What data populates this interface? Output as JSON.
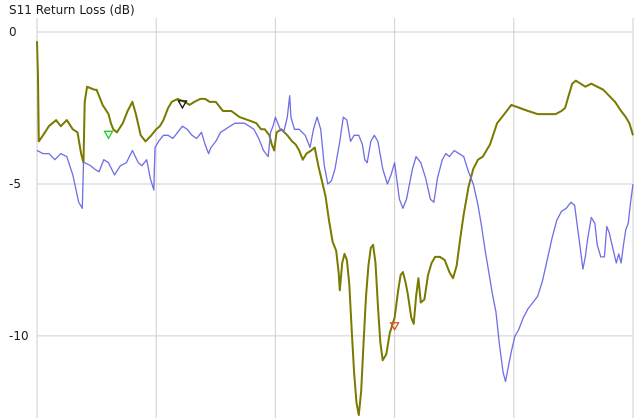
{
  "chart_data": {
    "type": "line",
    "title": "S11 Return Loss (dB)",
    "xlabel": "",
    "ylabel": "",
    "xlim": [
      0,
      500
    ],
    "ylim": [
      -12.7,
      0
    ],
    "y_ticks": [
      0,
      -5,
      -10
    ],
    "y_tick_labels": [
      "0",
      "-5",
      "-10"
    ],
    "x_gridlines": [
      0,
      100,
      200,
      300,
      400,
      500
    ],
    "grid": true,
    "legend": "none",
    "colors": {
      "olive": "#7a7a00",
      "blue": "#6e6ee6",
      "grid": "#cfcfcf",
      "marker_green": "#22cc22",
      "marker_black": "#111111",
      "marker_red": "#e05020"
    },
    "series": [
      {
        "color": "#7a7a00",
        "points": [
          [
            0,
            -0.3
          ],
          [
            0.8,
            -1.5
          ],
          [
            1.5,
            -3.6
          ],
          [
            5,
            -3.4
          ],
          [
            10,
            -3.1
          ],
          [
            16,
            -2.9
          ],
          [
            20,
            -3.1
          ],
          [
            25,
            -2.9
          ],
          [
            30,
            -3.2
          ],
          [
            34,
            -3.3
          ],
          [
            37,
            -4.0
          ],
          [
            39,
            -4.3
          ],
          [
            40,
            -2.3
          ],
          [
            42,
            -1.8
          ],
          [
            48,
            -1.9
          ],
          [
            50,
            -1.9
          ],
          [
            55,
            -2.4
          ],
          [
            60,
            -2.7
          ],
          [
            62,
            -3.0
          ],
          [
            64,
            -3.2
          ],
          [
            67,
            -3.3
          ],
          [
            72,
            -3.0
          ],
          [
            76,
            -2.6
          ],
          [
            80,
            -2.3
          ],
          [
            83,
            -2.7
          ],
          [
            87,
            -3.4
          ],
          [
            91,
            -3.6
          ],
          [
            96,
            -3.4
          ],
          [
            100,
            -3.2
          ],
          [
            103,
            -3.1
          ],
          [
            106,
            -2.9
          ],
          [
            110,
            -2.5
          ],
          [
            113,
            -2.3
          ],
          [
            118,
            -2.2
          ],
          [
            124,
            -2.3
          ],
          [
            128,
            -2.4
          ],
          [
            132,
            -2.3
          ],
          [
            137,
            -2.2
          ],
          [
            141,
            -2.2
          ],
          [
            145,
            -2.3
          ],
          [
            150,
            -2.3
          ],
          [
            156,
            -2.6
          ],
          [
            163,
            -2.6
          ],
          [
            170,
            -2.8
          ],
          [
            177,
            -2.9
          ],
          [
            184,
            -3.0
          ],
          [
            188,
            -3.2
          ],
          [
            191,
            -3.2
          ],
          [
            195,
            -3.4
          ],
          [
            197,
            -3.7
          ],
          [
            199,
            -3.9
          ],
          [
            201,
            -3.3
          ],
          [
            205,
            -3.2
          ],
          [
            210,
            -3.4
          ],
          [
            214,
            -3.6
          ],
          [
            217,
            -3.7
          ],
          [
            220,
            -3.9
          ],
          [
            223,
            -4.2
          ],
          [
            226,
            -4.0
          ],
          [
            230,
            -3.9
          ],
          [
            233,
            -3.8
          ],
          [
            236,
            -4.4
          ],
          [
            239,
            -4.9
          ],
          [
            242,
            -5.4
          ],
          [
            245,
            -6.2
          ],
          [
            248,
            -6.9
          ],
          [
            251,
            -7.2
          ],
          [
            253,
            -7.9
          ],
          [
            254,
            -8.5
          ],
          [
            256,
            -7.6
          ],
          [
            258,
            -7.3
          ],
          [
            260,
            -7.5
          ],
          [
            262,
            -8.3
          ],
          [
            264,
            -9.8
          ],
          [
            266,
            -11.2
          ],
          [
            268,
            -12.2
          ],
          [
            270,
            -12.6
          ],
          [
            272,
            -11.8
          ],
          [
            274,
            -10.2
          ],
          [
            276,
            -8.7
          ],
          [
            278,
            -7.7
          ],
          [
            280,
            -7.1
          ],
          [
            282,
            -7.0
          ],
          [
            284,
            -7.6
          ],
          [
            286,
            -9.0
          ],
          [
            288,
            -10.2
          ],
          [
            290,
            -10.8
          ],
          [
            293,
            -10.6
          ],
          [
            296,
            -9.9
          ],
          [
            300,
            -9.4
          ],
          [
            303,
            -8.5
          ],
          [
            305,
            -8.0
          ],
          [
            307,
            -7.9
          ],
          [
            309,
            -8.2
          ],
          [
            311,
            -8.6
          ],
          [
            314,
            -9.4
          ],
          [
            316,
            -9.6
          ],
          [
            318,
            -8.7
          ],
          [
            320,
            -8.1
          ],
          [
            322,
            -8.9
          ],
          [
            325,
            -8.8
          ],
          [
            328,
            -8.0
          ],
          [
            331,
            -7.6
          ],
          [
            334,
            -7.4
          ],
          [
            338,
            -7.4
          ],
          [
            342,
            -7.5
          ],
          [
            346,
            -7.9
          ],
          [
            349,
            -8.1
          ],
          [
            352,
            -7.7
          ],
          [
            355,
            -6.8
          ],
          [
            358,
            -6.0
          ],
          [
            362,
            -5.1
          ],
          [
            366,
            -4.5
          ],
          [
            370,
            -4.2
          ],
          [
            374,
            -4.1
          ],
          [
            380,
            -3.7
          ],
          [
            386,
            -3.0
          ],
          [
            392,
            -2.7
          ],
          [
            398,
            -2.4
          ],
          [
            405,
            -2.5
          ],
          [
            412,
            -2.6
          ],
          [
            420,
            -2.7
          ],
          [
            428,
            -2.7
          ],
          [
            435,
            -2.7
          ],
          [
            440,
            -2.6
          ],
          [
            443,
            -2.5
          ],
          [
            446,
            -2.1
          ],
          [
            449,
            -1.7
          ],
          [
            452,
            -1.6
          ],
          [
            456,
            -1.7
          ],
          [
            460,
            -1.8
          ],
          [
            465,
            -1.7
          ],
          [
            470,
            -1.8
          ],
          [
            475,
            -1.9
          ],
          [
            480,
            -2.1
          ],
          [
            485,
            -2.3
          ],
          [
            490,
            -2.6
          ],
          [
            494,
            -2.8
          ],
          [
            497,
            -3.0
          ],
          [
            500,
            -3.4
          ]
        ]
      },
      {
        "color": "#6e6ee6",
        "points": [
          [
            0,
            -3.9
          ],
          [
            5,
            -4.0
          ],
          [
            10,
            -4.0
          ],
          [
            15,
            -4.2
          ],
          [
            20,
            -4.0
          ],
          [
            25,
            -4.1
          ],
          [
            30,
            -4.7
          ],
          [
            35,
            -5.6
          ],
          [
            38,
            -5.8
          ],
          [
            39,
            -4.3
          ],
          [
            40,
            -4.3
          ],
          [
            45,
            -4.4
          ],
          [
            48,
            -4.5
          ],
          [
            52,
            -4.6
          ],
          [
            56,
            -4.2
          ],
          [
            60,
            -4.3
          ],
          [
            65,
            -4.7
          ],
          [
            70,
            -4.4
          ],
          [
            75,
            -4.3
          ],
          [
            80,
            -3.9
          ],
          [
            85,
            -4.3
          ],
          [
            88,
            -4.4
          ],
          [
            92,
            -4.2
          ],
          [
            95,
            -4.8
          ],
          [
            98,
            -5.2
          ],
          [
            99,
            -3.8
          ],
          [
            102,
            -3.6
          ],
          [
            106,
            -3.4
          ],
          [
            110,
            -3.4
          ],
          [
            114,
            -3.5
          ],
          [
            118,
            -3.3
          ],
          [
            122,
            -3.1
          ],
          [
            126,
            -3.2
          ],
          [
            130,
            -3.4
          ],
          [
            134,
            -3.5
          ],
          [
            138,
            -3.3
          ],
          [
            141,
            -3.7
          ],
          [
            144,
            -4.0
          ],
          [
            146,
            -3.8
          ],
          [
            150,
            -3.6
          ],
          [
            154,
            -3.3
          ],
          [
            158,
            -3.2
          ],
          [
            162,
            -3.1
          ],
          [
            166,
            -3.0
          ],
          [
            170,
            -3.0
          ],
          [
            174,
            -3.0
          ],
          [
            178,
            -3.1
          ],
          [
            182,
            -3.2
          ],
          [
            186,
            -3.5
          ],
          [
            190,
            -3.9
          ],
          [
            194,
            -4.1
          ],
          [
            196,
            -3.3
          ],
          [
            198,
            -3.1
          ],
          [
            200,
            -2.8
          ],
          [
            204,
            -3.2
          ],
          [
            207,
            -3.3
          ],
          [
            210,
            -2.8
          ],
          [
            212,
            -2.1
          ],
          [
            213,
            -2.8
          ],
          [
            216,
            -3.2
          ],
          [
            220,
            -3.2
          ],
          [
            225,
            -3.4
          ],
          [
            229,
            -3.8
          ],
          [
            232,
            -3.2
          ],
          [
            235,
            -2.8
          ],
          [
            238,
            -3.2
          ],
          [
            241,
            -4.4
          ],
          [
            244,
            -5.0
          ],
          [
            247,
            -4.9
          ],
          [
            250,
            -4.5
          ],
          [
            254,
            -3.6
          ],
          [
            257,
            -2.8
          ],
          [
            260,
            -2.9
          ],
          [
            263,
            -3.6
          ],
          [
            266,
            -3.4
          ],
          [
            270,
            -3.4
          ],
          [
            273,
            -3.7
          ],
          [
            275,
            -4.2
          ],
          [
            277,
            -4.3
          ],
          [
            280,
            -3.6
          ],
          [
            283,
            -3.4
          ],
          [
            286,
            -3.6
          ],
          [
            290,
            -4.5
          ],
          [
            294,
            -5.0
          ],
          [
            297,
            -4.7
          ],
          [
            300,
            -4.3
          ],
          [
            302,
            -4.9
          ],
          [
            304,
            -5.5
          ],
          [
            307,
            -5.8
          ],
          [
            310,
            -5.5
          ],
          [
            313,
            -4.9
          ],
          [
            315,
            -4.5
          ],
          [
            318,
            -4.1
          ],
          [
            322,
            -4.3
          ],
          [
            326,
            -4.8
          ],
          [
            330,
            -5.5
          ],
          [
            333,
            -5.6
          ],
          [
            336,
            -4.8
          ],
          [
            340,
            -4.2
          ],
          [
            343,
            -4.0
          ],
          [
            346,
            -4.1
          ],
          [
            350,
            -3.9
          ],
          [
            354,
            -4.0
          ],
          [
            358,
            -4.1
          ],
          [
            362,
            -4.6
          ],
          [
            366,
            -5.0
          ],
          [
            370,
            -5.7
          ],
          [
            373,
            -6.4
          ],
          [
            376,
            -7.2
          ],
          [
            379,
            -7.9
          ],
          [
            382,
            -8.6
          ],
          [
            385,
            -9.2
          ],
          [
            388,
            -10.3
          ],
          [
            391,
            -11.2
          ],
          [
            393,
            -11.5
          ],
          [
            395,
            -11.1
          ],
          [
            398,
            -10.5
          ],
          [
            401,
            -10.0
          ],
          [
            404,
            -9.8
          ],
          [
            408,
            -9.4
          ],
          [
            412,
            -9.1
          ],
          [
            416,
            -8.9
          ],
          [
            420,
            -8.7
          ],
          [
            424,
            -8.2
          ],
          [
            428,
            -7.5
          ],
          [
            432,
            -6.8
          ],
          [
            436,
            -6.2
          ],
          [
            440,
            -5.9
          ],
          [
            444,
            -5.8
          ],
          [
            448,
            -5.6
          ],
          [
            451,
            -5.7
          ],
          [
            453,
            -6.3
          ],
          [
            456,
            -7.2
          ],
          [
            458,
            -7.8
          ],
          [
            460,
            -7.4
          ],
          [
            462,
            -6.8
          ],
          [
            465,
            -6.1
          ],
          [
            468,
            -6.3
          ],
          [
            470,
            -7.0
          ],
          [
            473,
            -7.4
          ],
          [
            476,
            -7.4
          ],
          [
            478,
            -6.4
          ],
          [
            480,
            -6.6
          ],
          [
            483,
            -7.1
          ],
          [
            486,
            -7.6
          ],
          [
            488,
            -7.3
          ],
          [
            490,
            -7.6
          ],
          [
            492,
            -7.0
          ],
          [
            494,
            -6.5
          ],
          [
            496,
            -6.3
          ],
          [
            498,
            -5.6
          ],
          [
            500,
            -5.0
          ]
        ]
      }
    ],
    "markers": [
      {
        "x": 60,
        "y": -3.3,
        "color": "#22cc22"
      },
      {
        "x": 122,
        "y": -2.3,
        "color": "#111111"
      },
      {
        "x": 300,
        "y": -9.6,
        "color": "#e05020"
      }
    ]
  }
}
